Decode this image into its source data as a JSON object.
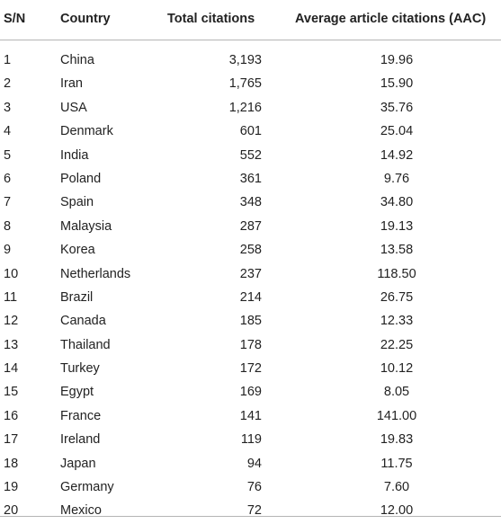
{
  "table": {
    "headers": {
      "sn": "S/N",
      "country": "Country",
      "total": "Total citations",
      "aac": "Average article citations (AAC)"
    },
    "rows": [
      {
        "sn": "1",
        "country": "China",
        "total": "3,193",
        "aac": "19.96"
      },
      {
        "sn": "2",
        "country": "Iran",
        "total": "1,765",
        "aac": "15.90"
      },
      {
        "sn": "3",
        "country": "USA",
        "total": "1,216",
        "aac": "35.76"
      },
      {
        "sn": "4",
        "country": "Denmark",
        "total": "601",
        "aac": "25.04"
      },
      {
        "sn": "5",
        "country": "India",
        "total": "552",
        "aac": "14.92"
      },
      {
        "sn": "6",
        "country": "Poland",
        "total": "361",
        "aac": "9.76"
      },
      {
        "sn": "7",
        "country": "Spain",
        "total": "348",
        "aac": "34.80"
      },
      {
        "sn": "8",
        "country": "Malaysia",
        "total": "287",
        "aac": "19.13"
      },
      {
        "sn": "9",
        "country": "Korea",
        "total": "258",
        "aac": "13.58"
      },
      {
        "sn": "10",
        "country": "Netherlands",
        "total": "237",
        "aac": "118.50"
      },
      {
        "sn": "11",
        "country": "Brazil",
        "total": "214",
        "aac": "26.75"
      },
      {
        "sn": "12",
        "country": "Canada",
        "total": "185",
        "aac": "12.33"
      },
      {
        "sn": "13",
        "country": "Thailand",
        "total": "178",
        "aac": "22.25"
      },
      {
        "sn": "14",
        "country": "Turkey",
        "total": "172",
        "aac": "10.12"
      },
      {
        "sn": "15",
        "country": "Egypt",
        "total": "169",
        "aac": "8.05"
      },
      {
        "sn": "16",
        "country": "France",
        "total": "141",
        "aac": "141.00"
      },
      {
        "sn": "17",
        "country": "Ireland",
        "total": "119",
        "aac": "19.83"
      },
      {
        "sn": "18",
        "country": "Japan",
        "total": "94",
        "aac": "11.75"
      },
      {
        "sn": "19",
        "country": "Germany",
        "total": "76",
        "aac": "7.60"
      },
      {
        "sn": "20",
        "country": "Mexico",
        "total": "72",
        "aac": "12.00"
      }
    ]
  }
}
